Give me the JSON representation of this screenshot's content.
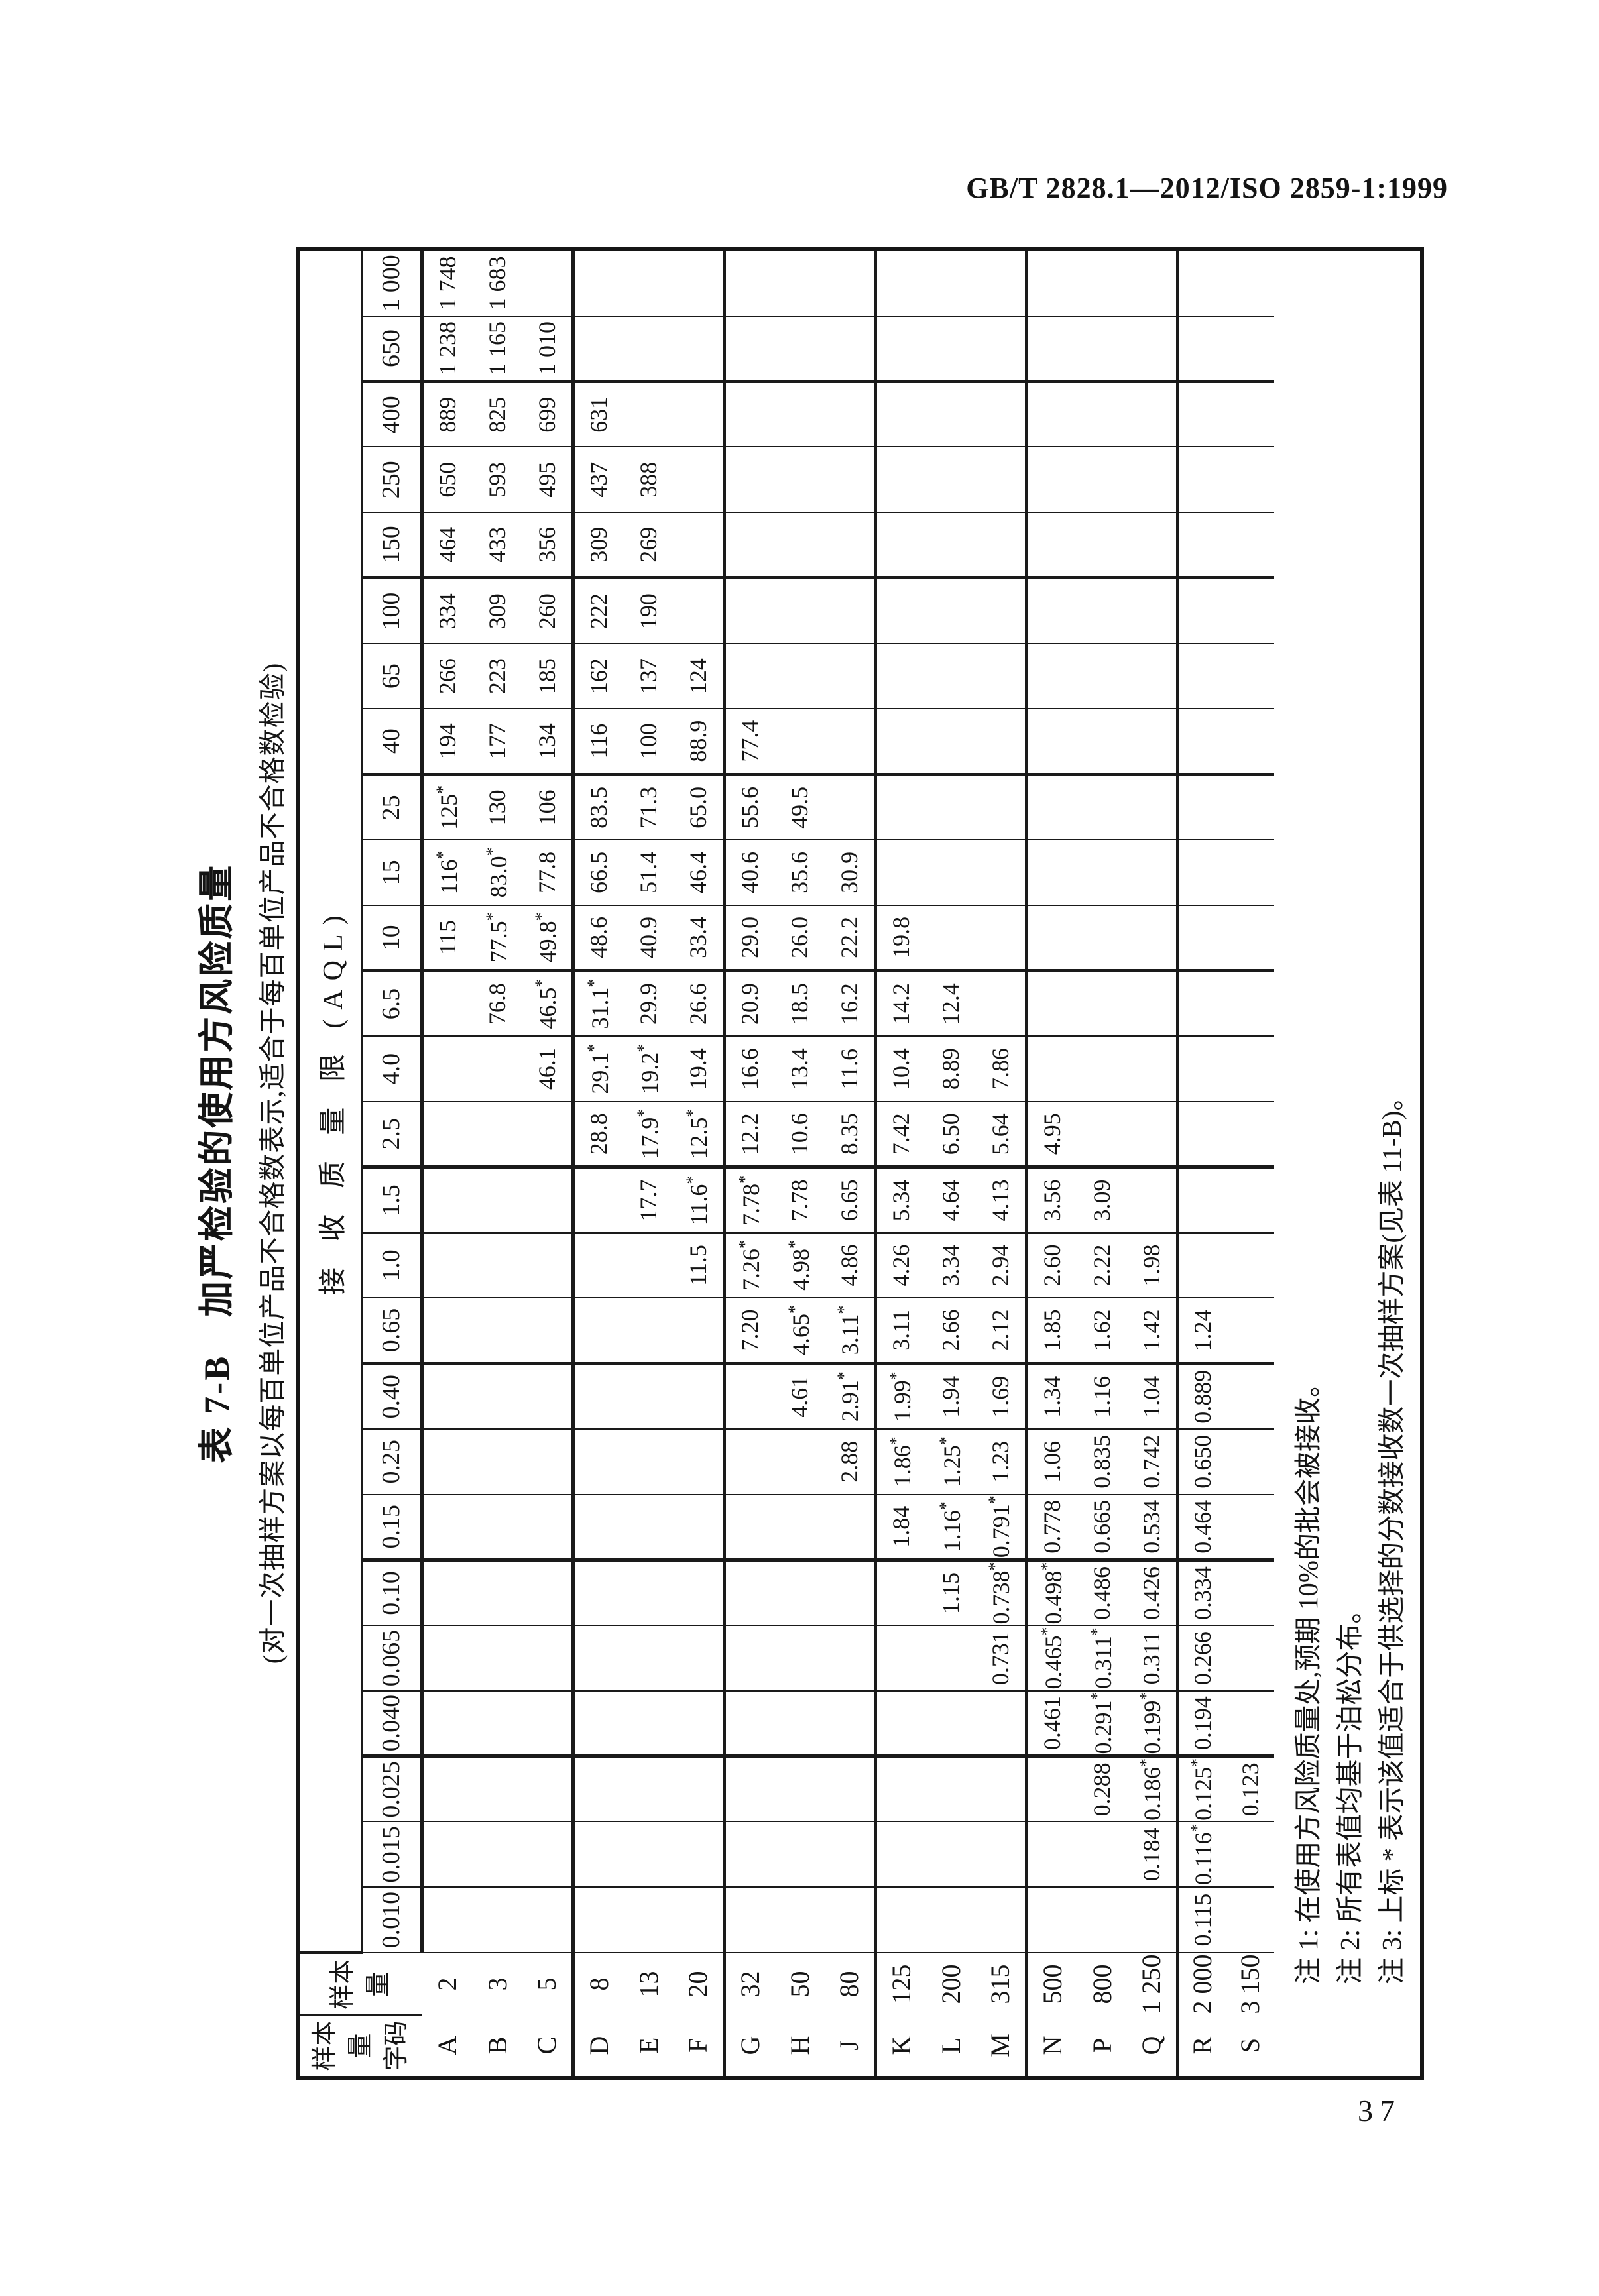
{
  "page": {
    "header": "GB/T 2828.1—2012/ISO 2859-1:1999",
    "page_number": "37"
  },
  "table": {
    "title": "表 7-B　加严检验的使用方风险质量",
    "subtitle": "(对一次抽样方案以每百单位产品不合格数表示,适合于每百单位产品不合格数检验)",
    "corner_code_header": "样本\n量\n字码",
    "corner_size_header": "样本\n量",
    "aql_header": "接 收 质 量 限 (AQL)",
    "aql_columns": [
      "0.010",
      "0.015",
      "0.025",
      "0.040",
      "0.065",
      "0.10",
      "0.15",
      "0.25",
      "0.40",
      "0.65",
      "1.0",
      "1.5",
      "2.5",
      "4.0",
      "6.5",
      "10",
      "15",
      "25",
      "40",
      "65",
      "100",
      "150",
      "250",
      "400",
      "650",
      "1 000"
    ],
    "rows": [
      {
        "code": "A",
        "size": "2",
        "values": [
          "",
          "",
          "",
          "",
          "",
          "",
          "",
          "",
          "",
          "",
          "",
          "",
          "",
          "",
          "",
          "115",
          "116*",
          "125*",
          "194",
          "266",
          "334",
          "464",
          "650",
          "889",
          "1 238",
          "1 748"
        ]
      },
      {
        "code": "B",
        "size": "3",
        "values": [
          "",
          "",
          "",
          "",
          "",
          "",
          "",
          "",
          "",
          "",
          "",
          "",
          "",
          "",
          "76.8",
          "77.5*",
          "83.0*",
          "130",
          "177",
          "223",
          "309",
          "433",
          "593",
          "825",
          "1 165",
          "1 683"
        ]
      },
      {
        "code": "C",
        "size": "5",
        "values": [
          "",
          "",
          "",
          "",
          "",
          "",
          "",
          "",
          "",
          "",
          "",
          "",
          "",
          "46.1",
          "46.5*",
          "49.8*",
          "77.8",
          "106",
          "134",
          "185",
          "260",
          "356",
          "495",
          "699",
          "1 010",
          ""
        ]
      },
      {
        "code": "D",
        "size": "8",
        "values": [
          "",
          "",
          "",
          "",
          "",
          "",
          "",
          "",
          "",
          "",
          "",
          "",
          "28.8",
          "29.1*",
          "31.1*",
          "48.6",
          "66.5",
          "83.5",
          "116",
          "162",
          "222",
          "309",
          "437",
          "631",
          "",
          ""
        ]
      },
      {
        "code": "E",
        "size": "13",
        "values": [
          "",
          "",
          "",
          "",
          "",
          "",
          "",
          "",
          "",
          "",
          "",
          "17.7",
          "17.9*",
          "19.2*",
          "29.9",
          "40.9",
          "51.4",
          "71.3",
          "100",
          "137",
          "190",
          "269",
          "388",
          "",
          "",
          ""
        ]
      },
      {
        "code": "F",
        "size": "20",
        "values": [
          "",
          "",
          "",
          "",
          "",
          "",
          "",
          "",
          "",
          "",
          "11.5",
          "11.6*",
          "12.5*",
          "19.4",
          "26.6",
          "33.4",
          "46.4",
          "65.0",
          "88.9",
          "124",
          "",
          "",
          "",
          "",
          "",
          ""
        ]
      },
      {
        "code": "G",
        "size": "32",
        "values": [
          "",
          "",
          "",
          "",
          "",
          "",
          "",
          "",
          "",
          "7.20",
          "7.26*",
          "7.78*",
          "12.2",
          "16.6",
          "20.9",
          "29.0",
          "40.6",
          "55.6",
          "77.4",
          "",
          "",
          "",
          "",
          "",
          "",
          ""
        ]
      },
      {
        "code": "H",
        "size": "50",
        "values": [
          "",
          "",
          "",
          "",
          "",
          "",
          "",
          "",
          "4.61",
          "4.65*",
          "4.98*",
          "7.78",
          "10.6",
          "13.4",
          "18.5",
          "26.0",
          "35.6",
          "49.5",
          "",
          "",
          "",
          "",
          "",
          "",
          "",
          ""
        ]
      },
      {
        "code": "J",
        "size": "80",
        "values": [
          "",
          "",
          "",
          "",
          "",
          "",
          "",
          "2.88",
          "2.91*",
          "3.11*",
          "4.86",
          "6.65",
          "8.35",
          "11.6",
          "16.2",
          "22.2",
          "30.9",
          "",
          "",
          "",
          "",
          "",
          "",
          "",
          "",
          ""
        ]
      },
      {
        "code": "K",
        "size": "125",
        "values": [
          "",
          "",
          "",
          "",
          "",
          "",
          "1.84",
          "1.86*",
          "1.99*",
          "3.11",
          "4.26",
          "5.34",
          "7.42",
          "10.4",
          "14.2",
          "19.8",
          "",
          "",
          "",
          "",
          "",
          "",
          "",
          "",
          "",
          ""
        ]
      },
      {
        "code": "L",
        "size": "200",
        "values": [
          "",
          "",
          "",
          "",
          "",
          "1.15",
          "1.16*",
          "1.25*",
          "1.94",
          "2.66",
          "3.34",
          "4.64",
          "6.50",
          "8.89",
          "12.4",
          "",
          "",
          "",
          "",
          "",
          "",
          "",
          "",
          "",
          "",
          ""
        ]
      },
      {
        "code": "M",
        "size": "315",
        "values": [
          "",
          "",
          "",
          "",
          "0.731",
          "0.738*",
          "0.791*",
          "1.23",
          "1.69",
          "2.12",
          "2.94",
          "4.13",
          "5.64",
          "7.86",
          "",
          "",
          "",
          "",
          "",
          "",
          "",
          "",
          "",
          "",
          "",
          ""
        ]
      },
      {
        "code": "N",
        "size": "500",
        "values": [
          "",
          "",
          "",
          "0.461",
          "0.465*",
          "0.498*",
          "0.778",
          "1.06",
          "1.34",
          "1.85",
          "2.60",
          "3.56",
          "4.95",
          "",
          "",
          "",
          "",
          "",
          "",
          "",
          "",
          "",
          "",
          "",
          "",
          ""
        ]
      },
      {
        "code": "P",
        "size": "800",
        "values": [
          "",
          "",
          "0.288",
          "0.291*",
          "0.311*",
          "0.486",
          "0.665",
          "0.835",
          "1.16",
          "1.62",
          "2.22",
          "3.09",
          "",
          "",
          "",
          "",
          "",
          "",
          "",
          "",
          "",
          "",
          "",
          "",
          "",
          ""
        ]
      },
      {
        "code": "Q",
        "size": "1 250",
        "values": [
          "",
          "0.184",
          "0.186*",
          "0.199*",
          "0.311",
          "0.426",
          "0.534",
          "0.742",
          "1.04",
          "1.42",
          "1.98",
          "",
          "",
          "",
          "",
          "",
          "",
          "",
          "",
          "",
          "",
          "",
          "",
          "",
          "",
          ""
        ]
      },
      {
        "code": "R",
        "size": "2 000",
        "values": [
          "0.115",
          "0.116*",
          "0.125*",
          "0.194",
          "0.266",
          "0.334",
          "0.464",
          "0.650",
          "0.889",
          "1.24",
          "",
          "",
          "",
          "",
          "",
          "",
          "",
          "",
          "",
          "",
          "",
          "",
          "",
          "",
          "",
          ""
        ]
      },
      {
        "code": "S",
        "size": "3 150",
        "values": [
          "",
          "",
          "0.123",
          "",
          "",
          "",
          "",
          "",
          "",
          "",
          "",
          "",
          "",
          "",
          "",
          "",
          "",
          "",
          "",
          "",
          "",
          "",
          "",
          "",
          "",
          ""
        ]
      }
    ],
    "notes": [
      "注 1: 在使用方风险质量处,预期 10%的批会被接收。",
      "注 2: 所有表值均基于泊松分布。",
      "注 3: 上标 * 表示该值适合于供选择的分数接收数一次抽样方案(见表 11-B)。"
    ]
  }
}
